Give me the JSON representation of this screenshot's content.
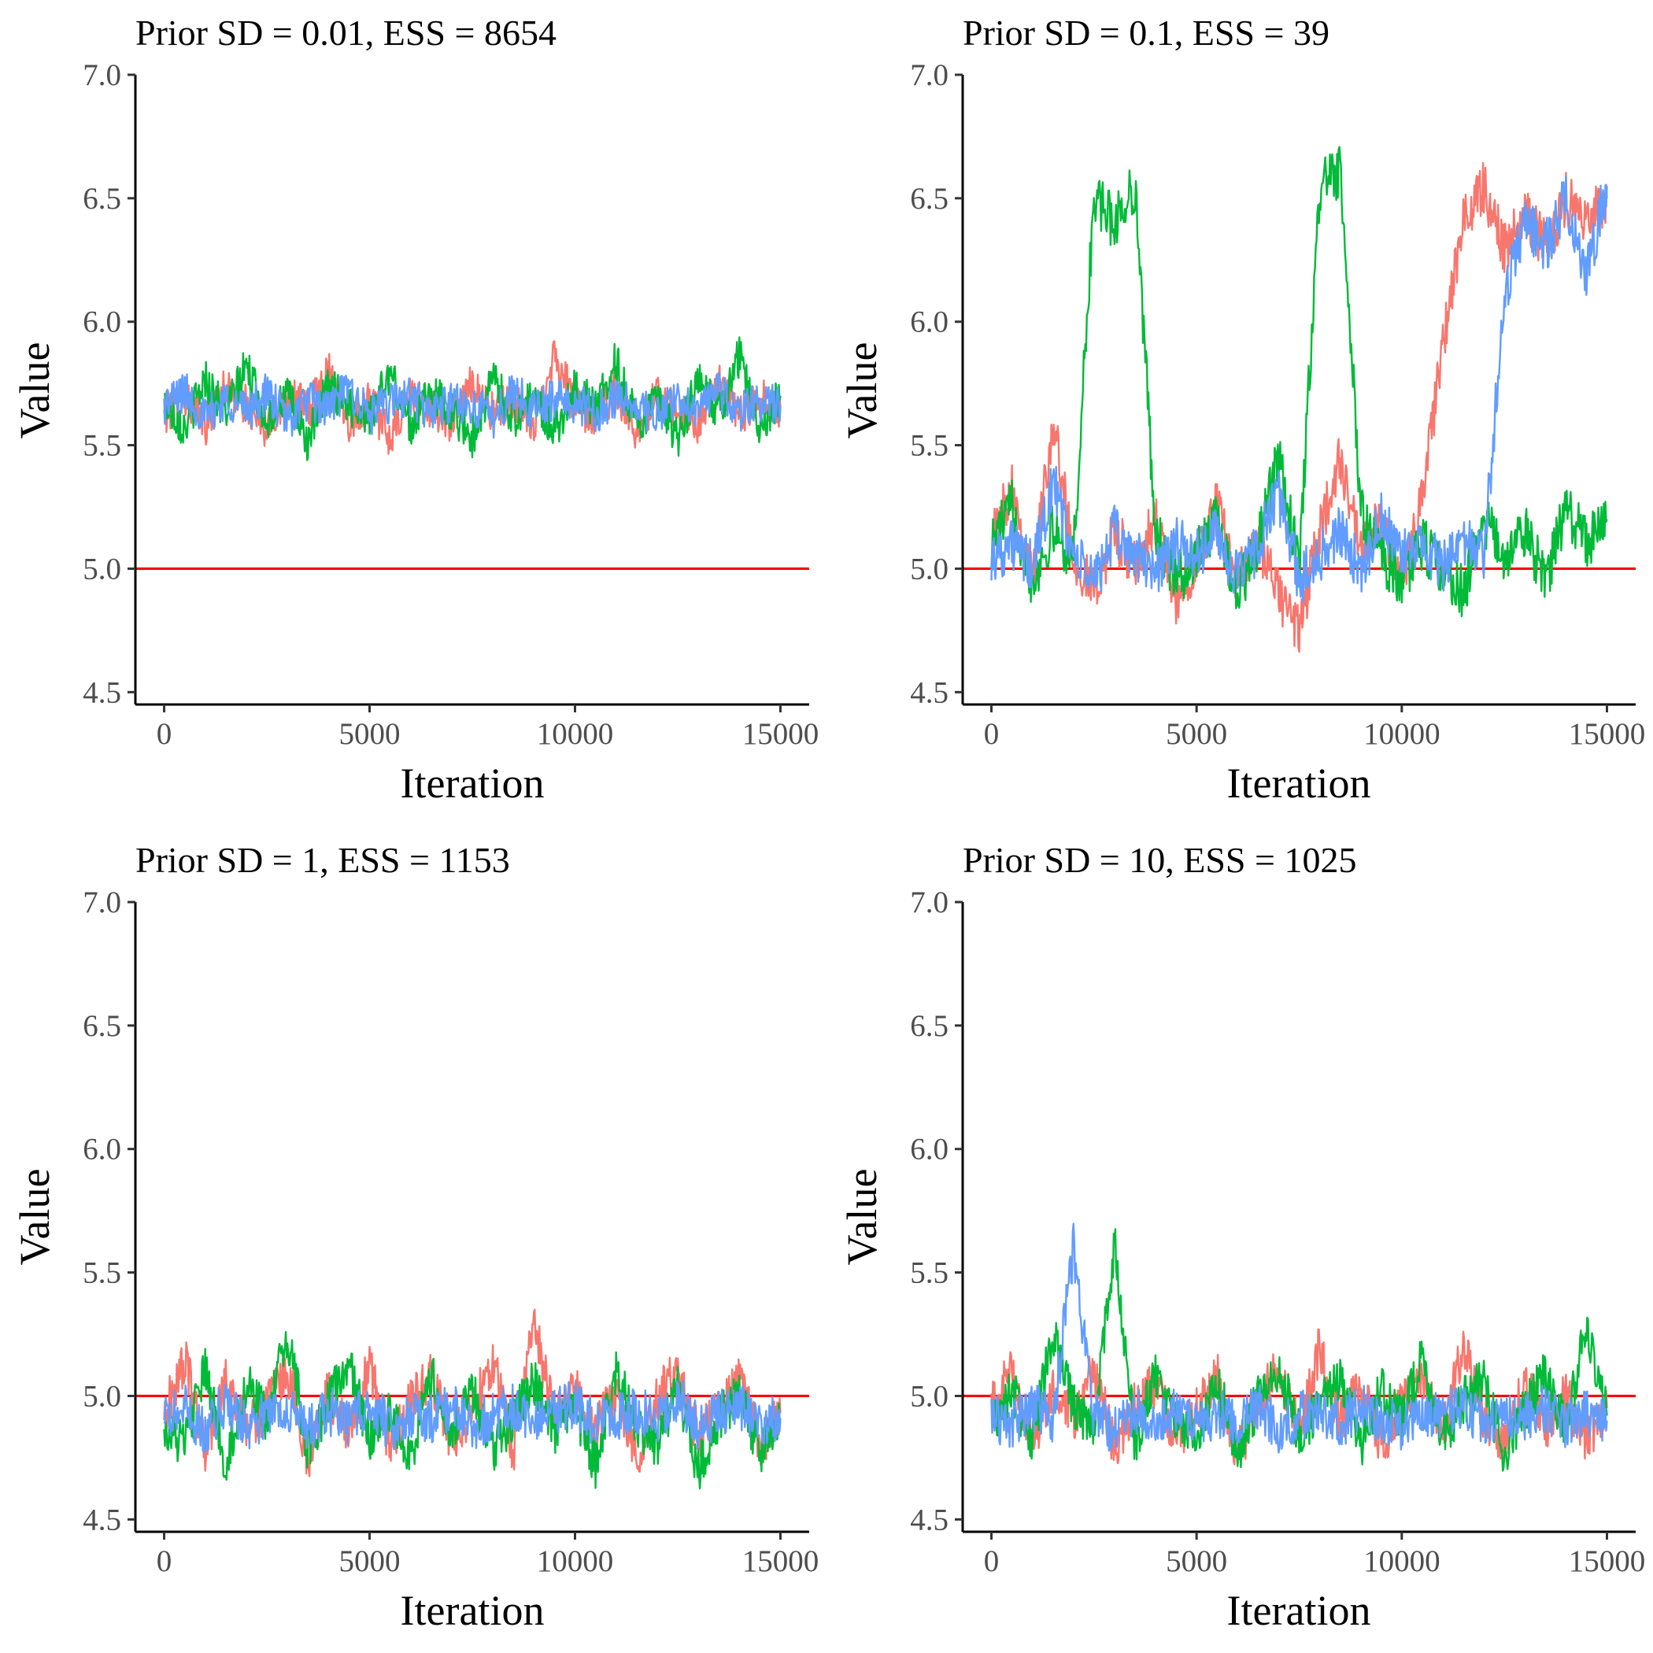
{
  "figure": {
    "background": "#ffffff"
  },
  "series_colors": {
    "chain1": "#f8766d",
    "chain2": "#00ba38",
    "chain3": "#619cff"
  },
  "reference_line_color": "#ff0000",
  "chart_data": [
    {
      "type": "line",
      "title": "Prior SD = 0.01, ESS = 8654",
      "xlabel": "Iteration",
      "ylabel": "Value",
      "xlim": [
        -700,
        15700
      ],
      "ylim": [
        4.45,
        7.0
      ],
      "xticks": [
        0,
        5000,
        10000,
        15000
      ],
      "yticks": [
        4.5,
        5.0,
        5.5,
        6.0,
        6.5,
        7.0
      ],
      "xtick_labels": [
        "0",
        "5000",
        "10000",
        "15000"
      ],
      "ytick_labels": [
        "4.5",
        "5.0",
        "5.5",
        "6.0",
        "6.5",
        "7.0"
      ],
      "reference_line": 5.0,
      "grid": false,
      "series": [
        {
          "color": "#f8766d",
          "x": [
            0,
            500,
            1000,
            1500,
            2000,
            2500,
            3000,
            3500,
            4000,
            4500,
            5000,
            5500,
            6000,
            6500,
            7000,
            7500,
            8000,
            8500,
            9000,
            9500,
            10000,
            10500,
            11000,
            11500,
            12000,
            12500,
            13000,
            13500,
            14000,
            14500,
            15000
          ],
          "values": [
            5.62,
            5.7,
            5.58,
            5.74,
            5.66,
            5.55,
            5.72,
            5.64,
            5.8,
            5.6,
            5.68,
            5.52,
            5.71,
            5.65,
            5.59,
            5.76,
            5.63,
            5.69,
            5.57,
            5.88,
            5.66,
            5.61,
            5.73,
            5.56,
            5.7,
            5.64,
            5.58,
            5.75,
            5.62,
            5.69,
            5.65
          ]
        },
        {
          "color": "#00ba38",
          "x": [
            0,
            500,
            1000,
            1500,
            2000,
            2500,
            3000,
            3500,
            4000,
            4500,
            5000,
            5500,
            6000,
            6500,
            7000,
            7500,
            8000,
            8500,
            9000,
            9500,
            10000,
            10500,
            11000,
            11500,
            12000,
            12500,
            13000,
            13500,
            14000,
            14500,
            15000
          ],
          "values": [
            5.68,
            5.57,
            5.77,
            5.63,
            5.82,
            5.6,
            5.7,
            5.51,
            5.74,
            5.66,
            5.62,
            5.79,
            5.58,
            5.71,
            5.64,
            5.53,
            5.77,
            5.61,
            5.69,
            5.56,
            5.73,
            5.65,
            5.84,
            5.59,
            5.67,
            5.52,
            5.76,
            5.63,
            5.86,
            5.58,
            5.7
          ]
        },
        {
          "color": "#619cff",
          "x": [
            0,
            500,
            1000,
            1500,
            2000,
            2500,
            3000,
            3500,
            4000,
            4500,
            5000,
            5500,
            6000,
            6500,
            7000,
            7500,
            8000,
            8500,
            9000,
            9500,
            10000,
            10500,
            11000,
            11500,
            12000,
            12500,
            13000,
            13500,
            14000,
            14500,
            15000
          ],
          "values": [
            5.66,
            5.72,
            5.61,
            5.69,
            5.64,
            5.71,
            5.6,
            5.68,
            5.65,
            5.73,
            5.62,
            5.67,
            5.7,
            5.63,
            5.68,
            5.66,
            5.61,
            5.72,
            5.64,
            5.69,
            5.67,
            5.63,
            5.7,
            5.65,
            5.62,
            5.68,
            5.66,
            5.71,
            5.64,
            5.67,
            5.66
          ]
        }
      ]
    },
    {
      "type": "line",
      "title": "Prior SD = 0.1, ESS = 39",
      "xlabel": "Iteration",
      "ylabel": "Value",
      "xlim": [
        -700,
        15700
      ],
      "ylim": [
        4.45,
        7.0
      ],
      "xticks": [
        0,
        5000,
        10000,
        15000
      ],
      "yticks": [
        4.5,
        5.0,
        5.5,
        6.0,
        6.5,
        7.0
      ],
      "xtick_labels": [
        "0",
        "5000",
        "10000",
        "15000"
      ],
      "ytick_labels": [
        "4.5",
        "5.0",
        "5.5",
        "6.0",
        "6.5",
        "7.0"
      ],
      "reference_line": 5.0,
      "grid": false,
      "series": [
        {
          "color": "#f8766d",
          "x": [
            0,
            500,
            1000,
            1500,
            2000,
            2500,
            3000,
            3500,
            4000,
            4500,
            5000,
            5500,
            6000,
            6500,
            7000,
            7500,
            8000,
            8500,
            9000,
            9500,
            10000,
            10500,
            11000,
            11500,
            12000,
            12500,
            13000,
            13500,
            14000,
            14500,
            15000
          ],
          "values": [
            5.1,
            5.35,
            4.95,
            5.6,
            5.05,
            4.9,
            5.15,
            5.0,
            5.2,
            4.85,
            5.05,
            5.25,
            4.95,
            5.1,
            4.9,
            4.75,
            5.15,
            5.45,
            5.05,
            5.2,
            4.95,
            5.3,
            5.9,
            6.4,
            6.55,
            6.3,
            6.45,
            6.3,
            6.5,
            6.4,
            6.5
          ]
        },
        {
          "color": "#00ba38",
          "x": [
            0,
            500,
            1000,
            1500,
            2000,
            2500,
            3000,
            3500,
            4000,
            4500,
            5000,
            5500,
            6000,
            6500,
            7000,
            7500,
            8000,
            8500,
            9000,
            9500,
            10000,
            10500,
            11000,
            11500,
            12000,
            12500,
            13000,
            13500,
            14000,
            14500,
            15000
          ],
          "values": [
            5.1,
            5.25,
            4.95,
            5.15,
            5.05,
            6.5,
            6.4,
            6.55,
            5.15,
            4.95,
            5.05,
            5.2,
            4.9,
            5.1,
            5.45,
            5.0,
            6.55,
            6.6,
            5.25,
            5.05,
            4.95,
            5.1,
            5.0,
            4.9,
            5.2,
            5.05,
            5.15,
            4.95,
            5.25,
            5.1,
            5.2
          ]
        },
        {
          "color": "#619cff",
          "x": [
            0,
            500,
            1000,
            1500,
            2000,
            2500,
            3000,
            3500,
            4000,
            4500,
            5000,
            5500,
            6000,
            6500,
            7000,
            7500,
            8000,
            8500,
            9000,
            9500,
            10000,
            10500,
            11000,
            11500,
            12000,
            12500,
            13000,
            13500,
            14000,
            14500,
            15000
          ],
          "values": [
            5.05,
            5.1,
            5.0,
            5.35,
            5.05,
            4.95,
            5.15,
            5.05,
            5.0,
            5.1,
            5.05,
            5.15,
            4.95,
            5.1,
            5.3,
            4.95,
            5.05,
            5.15,
            5.0,
            5.2,
            5.05,
            5.1,
            5.0,
            5.1,
            5.05,
            6.1,
            6.4,
            6.3,
            6.5,
            6.2,
            6.55
          ]
        }
      ]
    },
    {
      "type": "line",
      "title": "Prior SD = 1, ESS = 1153",
      "xlabel": "Iteration",
      "ylabel": "Value",
      "xlim": [
        -700,
        15700
      ],
      "ylim": [
        4.45,
        7.0
      ],
      "xticks": [
        0,
        5000,
        10000,
        15000
      ],
      "yticks": [
        4.5,
        5.0,
        5.5,
        6.0,
        6.5,
        7.0
      ],
      "xtick_labels": [
        "0",
        "5000",
        "10000",
        "15000"
      ],
      "ytick_labels": [
        "4.5",
        "5.0",
        "5.5",
        "6.0",
        "6.5",
        "7.0"
      ],
      "reference_line": 5.0,
      "grid": false,
      "series": [
        {
          "color": "#f8766d",
          "x": [
            0,
            500,
            1000,
            1500,
            2000,
            2500,
            3000,
            3500,
            4000,
            4500,
            5000,
            5500,
            6000,
            6500,
            7000,
            7500,
            8000,
            8500,
            9000,
            9500,
            10000,
            10500,
            11000,
            11500,
            12000,
            12500,
            13000,
            13500,
            14000,
            14500,
            15000
          ],
          "values": [
            4.92,
            5.15,
            4.78,
            5.05,
            4.88,
            4.95,
            5.1,
            4.75,
            5.02,
            4.85,
            5.12,
            4.8,
            4.97,
            5.08,
            4.82,
            4.94,
            5.15,
            4.78,
            5.3,
            4.9,
            5.05,
            4.85,
            5.02,
            4.76,
            4.98,
            5.12,
            4.83,
            4.95,
            5.06,
            4.8,
            4.93
          ]
        },
        {
          "color": "#00ba38",
          "x": [
            0,
            500,
            1000,
            1500,
            2000,
            2500,
            3000,
            3500,
            4000,
            4500,
            5000,
            5500,
            6000,
            6500,
            7000,
            7500,
            8000,
            8500,
            9000,
            9500,
            10000,
            10500,
            11000,
            11500,
            12000,
            12500,
            13000,
            13500,
            14000,
            14500,
            15000
          ],
          "values": [
            4.88,
            4.8,
            5.1,
            4.72,
            5.05,
            4.9,
            5.25,
            4.78,
            4.98,
            5.12,
            4.82,
            4.95,
            4.75,
            5.08,
            4.86,
            5.02,
            4.78,
            4.92,
            5.06,
            4.84,
            4.96,
            4.72,
            5.1,
            4.88,
            4.8,
            5.04,
            4.7,
            4.92,
            5.0,
            4.78,
            4.9
          ]
        },
        {
          "color": "#619cff",
          "x": [
            0,
            500,
            1000,
            1500,
            2000,
            2500,
            3000,
            3500,
            4000,
            4500,
            5000,
            5500,
            6000,
            6500,
            7000,
            7500,
            8000,
            8500,
            9000,
            9500,
            10000,
            10500,
            11000,
            11500,
            12000,
            12500,
            13000,
            13500,
            14000,
            14500,
            15000
          ],
          "values": [
            4.9,
            4.95,
            4.85,
            4.98,
            4.88,
            4.92,
            4.96,
            4.86,
            4.94,
            4.9,
            4.97,
            4.87,
            4.93,
            4.91,
            4.95,
            4.88,
            4.92,
            4.96,
            4.89,
            4.94,
            4.97,
            4.88,
            4.92,
            4.95,
            4.9,
            5.0,
            4.87,
            4.93,
            4.96,
            4.89,
            4.91
          ]
        }
      ]
    },
    {
      "type": "line",
      "title": "Prior SD = 10, ESS = 1025",
      "xlabel": "Iteration",
      "ylabel": "Value",
      "xlim": [
        -700,
        15700
      ],
      "ylim": [
        4.45,
        7.0
      ],
      "xticks": [
        0,
        5000,
        10000,
        15000
      ],
      "yticks": [
        4.5,
        5.0,
        5.5,
        6.0,
        6.5,
        7.0
      ],
      "xtick_labels": [
        "0",
        "5000",
        "10000",
        "15000"
      ],
      "ytick_labels": [
        "4.5",
        "5.0",
        "5.5",
        "6.0",
        "6.5",
        "7.0"
      ],
      "reference_line": 5.0,
      "grid": false,
      "series": [
        {
          "color": "#f8766d",
          "x": [
            0,
            500,
            1000,
            1500,
            2000,
            2500,
            3000,
            3500,
            4000,
            4500,
            5000,
            5500,
            6000,
            6500,
            7000,
            7500,
            8000,
            8500,
            9000,
            9500,
            10000,
            10500,
            11000,
            11500,
            12000,
            12500,
            13000,
            13500,
            14000,
            14500,
            15000
          ],
          "values": [
            4.95,
            5.1,
            4.8,
            5.02,
            4.88,
            5.12,
            4.78,
            4.96,
            5.05,
            4.82,
            4.94,
            5.08,
            4.76,
            4.98,
            5.12,
            4.85,
            5.2,
            4.9,
            5.04,
            4.8,
            4.96,
            5.1,
            4.84,
            5.22,
            4.92,
            4.78,
            5.06,
            4.88,
            5.0,
            4.82,
            4.95
          ]
        },
        {
          "color": "#00ba38",
          "x": [
            0,
            500,
            1000,
            1500,
            2000,
            2500,
            3000,
            3500,
            4000,
            4500,
            5000,
            5500,
            6000,
            6500,
            7000,
            7500,
            8000,
            8500,
            9000,
            9500,
            10000,
            10500,
            11000,
            11500,
            12000,
            12500,
            13000,
            13500,
            14000,
            14500,
            15000
          ],
          "values": [
            4.9,
            5.02,
            4.82,
            5.25,
            4.95,
            4.88,
            5.62,
            4.8,
            5.1,
            4.92,
            4.85,
            5.05,
            4.78,
            4.98,
            5.12,
            4.84,
            4.96,
            5.08,
            4.8,
            5.02,
            4.9,
            5.15,
            4.82,
            4.98,
            5.06,
            4.76,
            4.94,
            5.1,
            4.86,
            5.3,
            4.92
          ]
        },
        {
          "color": "#619cff",
          "x": [
            0,
            500,
            1000,
            1500,
            2000,
            2500,
            3000,
            3500,
            4000,
            4500,
            5000,
            5500,
            6000,
            6500,
            7000,
            7500,
            8000,
            8500,
            9000,
            9500,
            10000,
            10500,
            11000,
            11500,
            12000,
            12500,
            13000,
            13500,
            14000,
            14500,
            15000
          ],
          "values": [
            4.92,
            4.88,
            4.96,
            4.9,
            5.6,
            4.92,
            4.86,
            4.94,
            4.9,
            4.95,
            4.88,
            4.93,
            4.9,
            4.96,
            4.87,
            4.92,
            4.94,
            4.89,
            4.95,
            4.91,
            4.88,
            4.94,
            4.92,
            4.96,
            4.89,
            4.93,
            4.91,
            4.95,
            4.88,
            4.93,
            4.9
          ]
        }
      ]
    }
  ]
}
